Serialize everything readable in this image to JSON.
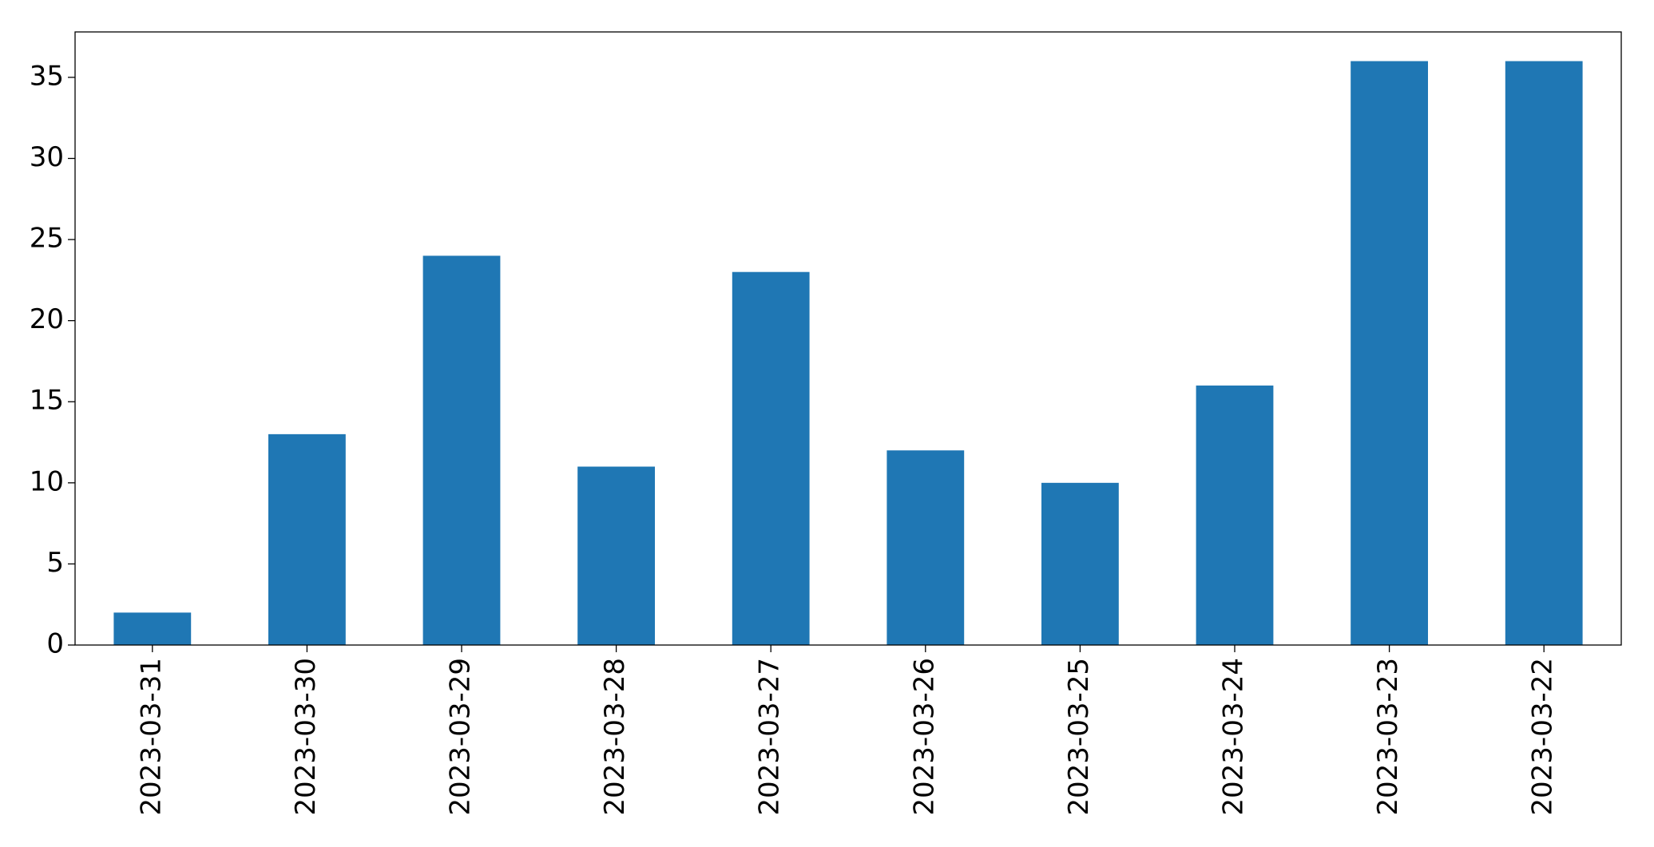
{
  "chart_data": {
    "type": "bar",
    "categories": [
      "2023-03-31",
      "2023-03-30",
      "2023-03-29",
      "2023-03-28",
      "2023-03-27",
      "2023-03-26",
      "2023-03-25",
      "2023-03-24",
      "2023-03-23",
      "2023-03-22"
    ],
    "values": [
      2,
      13,
      24,
      11,
      23,
      12,
      10,
      16,
      36,
      36
    ],
    "color": "#1f77b4",
    "ylim": [
      0,
      37.8
    ],
    "yticks": [
      0,
      5,
      10,
      15,
      20,
      25,
      30,
      35
    ],
    "grid": false
  }
}
